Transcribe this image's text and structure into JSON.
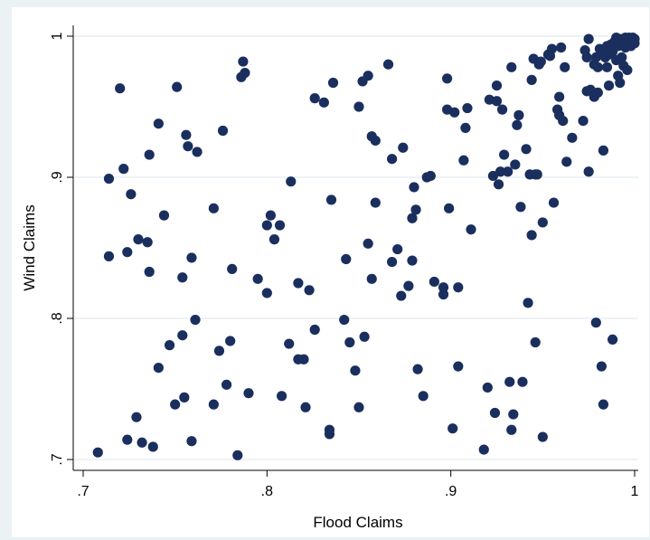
{
  "chart_data": {
    "type": "scatter",
    "title": "",
    "xlabel": "Flood Claims",
    "ylabel": "Wind Claims",
    "xlim": [
      0.7,
      1.0
    ],
    "ylim": [
      0.7,
      1.0
    ],
    "x_ticks": [
      ".7",
      ".8",
      ".9",
      "1"
    ],
    "y_ticks": [
      ".7",
      ".8",
      ".9",
      "1"
    ],
    "grid": "horizontal",
    "marker_color": "#1a2f5e",
    "points": [
      [
        0.708,
        0.705
      ],
      [
        0.714,
        0.899
      ],
      [
        0.714,
        0.844
      ],
      [
        0.72,
        0.963
      ],
      [
        0.722,
        0.906
      ],
      [
        0.724,
        0.847
      ],
      [
        0.724,
        0.714
      ],
      [
        0.726,
        0.888
      ],
      [
        0.729,
        0.73
      ],
      [
        0.73,
        0.856
      ],
      [
        0.732,
        0.712
      ],
      [
        0.735,
        0.854
      ],
      [
        0.736,
        0.916
      ],
      [
        0.736,
        0.833
      ],
      [
        0.738,
        0.709
      ],
      [
        0.741,
        0.938
      ],
      [
        0.741,
        0.765
      ],
      [
        0.744,
        0.873
      ],
      [
        0.747,
        0.781
      ],
      [
        0.75,
        0.739
      ],
      [
        0.751,
        0.964
      ],
      [
        0.754,
        0.829
      ],
      [
        0.754,
        0.788
      ],
      [
        0.755,
        0.744
      ],
      [
        0.756,
        0.93
      ],
      [
        0.757,
        0.922
      ],
      [
        0.759,
        0.843
      ],
      [
        0.759,
        0.713
      ],
      [
        0.761,
        0.799
      ],
      [
        0.762,
        0.918
      ],
      [
        0.771,
        0.878
      ],
      [
        0.771,
        0.739
      ],
      [
        0.774,
        0.777
      ],
      [
        0.776,
        0.933
      ],
      [
        0.778,
        0.753
      ],
      [
        0.78,
        0.784
      ],
      [
        0.781,
        0.835
      ],
      [
        0.784,
        0.703
      ],
      [
        0.787,
        0.982
      ],
      [
        0.786,
        0.971
      ],
      [
        0.788,
        0.974
      ],
      [
        0.79,
        0.747
      ],
      [
        0.795,
        0.828
      ],
      [
        0.8,
        0.866
      ],
      [
        0.8,
        0.818
      ],
      [
        0.802,
        0.873
      ],
      [
        0.804,
        0.856
      ],
      [
        0.807,
        0.866
      ],
      [
        0.808,
        0.745
      ],
      [
        0.812,
        0.782
      ],
      [
        0.813,
        0.897
      ],
      [
        0.817,
        0.771
      ],
      [
        0.817,
        0.825
      ],
      [
        0.82,
        0.771
      ],
      [
        0.821,
        0.737
      ],
      [
        0.823,
        0.82
      ],
      [
        0.826,
        0.956
      ],
      [
        0.826,
        0.792
      ],
      [
        0.831,
        0.953
      ],
      [
        0.834,
        0.721
      ],
      [
        0.834,
        0.718
      ],
      [
        0.835,
        0.884
      ],
      [
        0.836,
        0.967
      ],
      [
        0.842,
        0.799
      ],
      [
        0.843,
        0.842
      ],
      [
        0.845,
        0.783
      ],
      [
        0.848,
        0.763
      ],
      [
        0.85,
        0.737
      ],
      [
        0.85,
        0.95
      ],
      [
        0.852,
        0.968
      ],
      [
        0.853,
        0.787
      ],
      [
        0.855,
        0.972
      ],
      [
        0.855,
        0.853
      ],
      [
        0.857,
        0.828
      ],
      [
        0.857,
        0.929
      ],
      [
        0.859,
        0.926
      ],
      [
        0.859,
        0.882
      ],
      [
        0.866,
        0.98
      ],
      [
        0.868,
        0.84
      ],
      [
        0.868,
        0.913
      ],
      [
        0.871,
        0.849
      ],
      [
        0.873,
        0.816
      ],
      [
        0.874,
        0.921
      ],
      [
        0.877,
        0.823
      ],
      [
        0.879,
        0.871
      ],
      [
        0.879,
        0.841
      ],
      [
        0.88,
        0.893
      ],
      [
        0.881,
        0.877
      ],
      [
        0.882,
        0.764
      ],
      [
        0.885,
        0.745
      ],
      [
        0.887,
        0.9
      ],
      [
        0.889,
        0.901
      ],
      [
        0.891,
        0.826
      ],
      [
        0.896,
        0.822
      ],
      [
        0.896,
        0.817
      ],
      [
        0.898,
        0.97
      ],
      [
        0.898,
        0.948
      ],
      [
        0.899,
        0.878
      ],
      [
        0.901,
        0.722
      ],
      [
        0.902,
        0.946
      ],
      [
        0.904,
        0.766
      ],
      [
        0.904,
        0.822
      ],
      [
        0.907,
        0.912
      ],
      [
        0.908,
        0.935
      ],
      [
        0.909,
        0.949
      ],
      [
        0.911,
        0.863
      ],
      [
        0.918,
        0.707
      ],
      [
        0.92,
        0.751
      ],
      [
        0.921,
        0.955
      ],
      [
        0.923,
        0.901
      ],
      [
        0.924,
        0.733
      ],
      [
        0.925,
        0.965
      ],
      [
        0.925,
        0.954
      ],
      [
        0.926,
        0.895
      ],
      [
        0.927,
        0.904
      ],
      [
        0.928,
        0.948
      ],
      [
        0.929,
        0.916
      ],
      [
        0.931,
        0.904
      ],
      [
        0.932,
        0.755
      ],
      [
        0.933,
        0.978
      ],
      [
        0.933,
        0.721
      ],
      [
        0.934,
        0.732
      ],
      [
        0.935,
        0.909
      ],
      [
        0.936,
        0.937
      ],
      [
        0.937,
        0.944
      ],
      [
        0.938,
        0.879
      ],
      [
        0.939,
        0.755
      ],
      [
        0.941,
        0.92
      ],
      [
        0.942,
        0.811
      ],
      [
        0.943,
        0.902
      ],
      [
        0.944,
        0.859
      ],
      [
        0.944,
        0.969
      ],
      [
        0.945,
        0.984
      ],
      [
        0.946,
        0.783
      ],
      [
        0.946,
        0.902
      ],
      [
        0.947,
        0.902
      ],
      [
        0.948,
        0.98
      ],
      [
        0.949,
        0.982
      ],
      [
        0.95,
        0.868
      ],
      [
        0.95,
        0.716
      ],
      [
        0.953,
        0.987
      ],
      [
        0.954,
        0.986
      ],
      [
        0.955,
        0.991
      ],
      [
        0.956,
        0.882
      ],
      [
        0.958,
        0.948
      ],
      [
        0.959,
        0.944
      ],
      [
        0.959,
        0.957
      ],
      [
        0.96,
        0.992
      ],
      [
        0.961,
        0.94
      ],
      [
        0.962,
        0.978
      ],
      [
        0.963,
        0.911
      ],
      [
        0.966,
        0.928
      ],
      [
        0.972,
        0.94
      ],
      [
        0.973,
        0.99
      ],
      [
        0.974,
        0.961
      ],
      [
        0.974,
        0.985
      ],
      [
        0.975,
        0.998
      ],
      [
        0.975,
        0.904
      ],
      [
        0.976,
        0.962
      ],
      [
        0.978,
        0.957
      ],
      [
        0.978,
        0.98
      ],
      [
        0.979,
        0.797
      ],
      [
        0.979,
        0.985
      ],
      [
        0.98,
        0.96
      ],
      [
        0.98,
        0.978
      ],
      [
        0.981,
        0.991
      ],
      [
        0.982,
        0.766
      ],
      [
        0.982,
        0.988
      ],
      [
        0.983,
        0.919
      ],
      [
        0.983,
        0.739
      ],
      [
        0.984,
        0.985
      ],
      [
        0.985,
        0.978
      ],
      [
        0.985,
        0.993
      ],
      [
        0.986,
        0.965
      ],
      [
        0.986,
        0.987
      ],
      [
        0.987,
        0.994
      ],
      [
        0.988,
        0.989
      ],
      [
        0.988,
        0.785
      ],
      [
        0.989,
        0.996
      ],
      [
        0.99,
        0.999
      ],
      [
        0.99,
        0.983
      ],
      [
        0.991,
        0.972
      ],
      [
        0.991,
        0.993
      ],
      [
        0.992,
        0.967
      ],
      [
        0.992,
        0.998
      ],
      [
        0.993,
        0.985
      ],
      [
        0.993,
        0.996
      ],
      [
        0.994,
        0.998
      ],
      [
        0.994,
        0.979
      ],
      [
        0.995,
        0.992
      ],
      [
        0.995,
        0.999
      ],
      [
        0.996,
        0.996
      ],
      [
        0.996,
        0.976
      ],
      [
        0.997,
        0.999
      ],
      [
        0.997,
        0.995
      ],
      [
        0.998,
        0.997
      ],
      [
        0.998,
        0.993
      ],
      [
        0.999,
        0.999
      ],
      [
        0.999,
        0.996
      ],
      [
        1.0,
        0.998
      ],
      [
        1.0,
        0.995
      ]
    ]
  }
}
